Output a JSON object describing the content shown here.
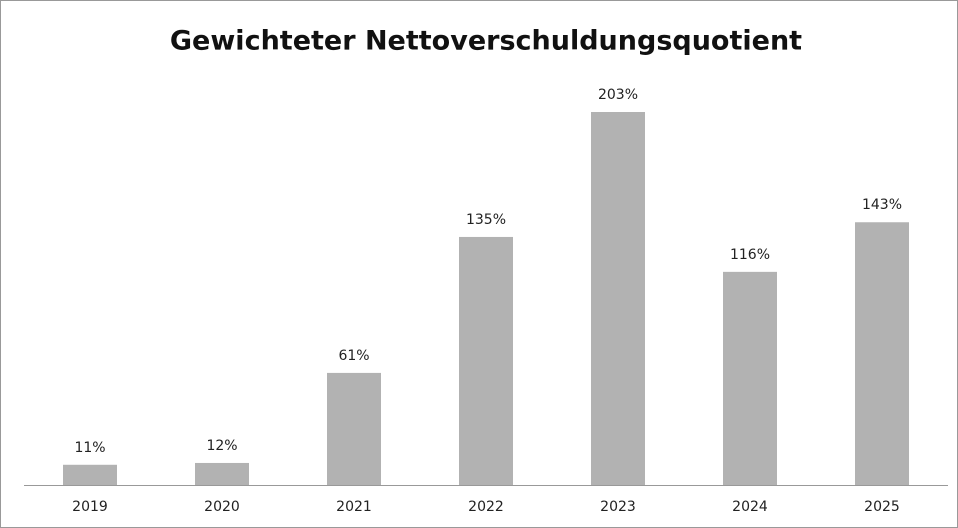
{
  "chart_data": {
    "type": "bar",
    "title": "Gewichteter Nettoverschuldungsquotient",
    "categories": [
      "2019",
      "2020",
      "2021",
      "2022",
      "2023",
      "2024",
      "2025"
    ],
    "values": [
      11,
      12,
      61,
      135,
      203,
      116,
      143
    ],
    "value_labels": [
      "11%",
      "12%",
      "61%",
      "135%",
      "203%",
      "116%",
      "143%"
    ],
    "color": "#b2b2b2"
  }
}
